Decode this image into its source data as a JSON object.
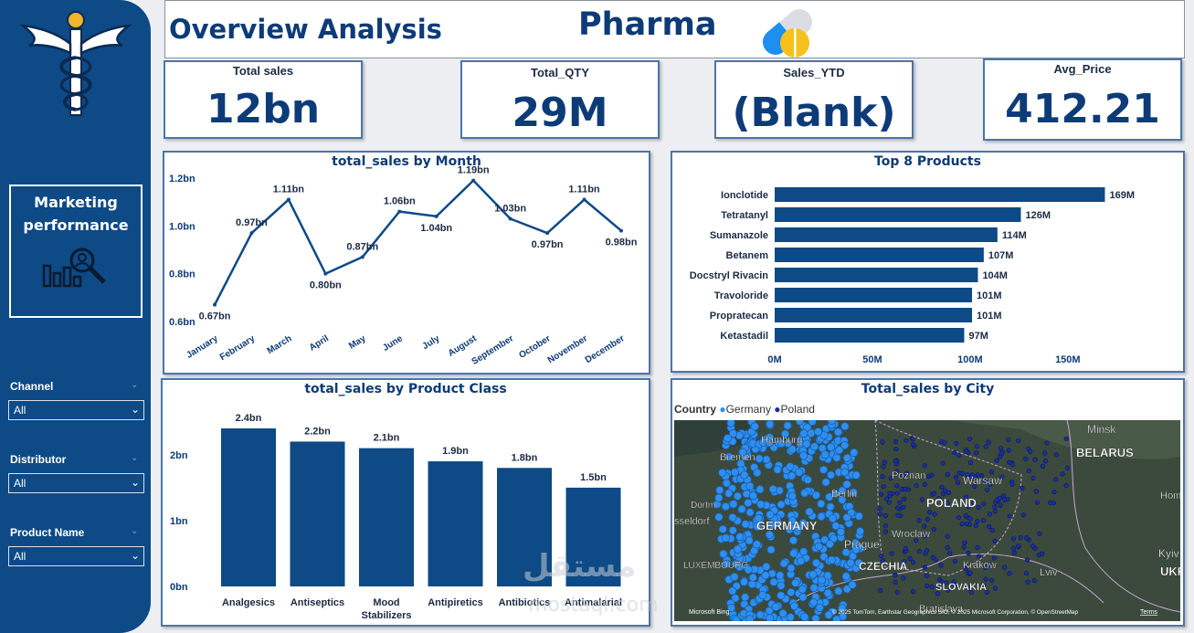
{
  "header": {
    "title": "Overview Analysis",
    "brand": "Pharma"
  },
  "nav": {
    "marketing_label": "Marketing performance"
  },
  "filters": [
    {
      "label": "Channel",
      "value": "All"
    },
    {
      "label": "Distributor",
      "value": "All"
    },
    {
      "label": "Product Name",
      "value": "All"
    }
  ],
  "kpis": [
    {
      "label": "Total sales",
      "value": "12bn"
    },
    {
      "label": "Total_QTY",
      "value": "29M"
    },
    {
      "label": "Sales_YTD",
      "value": "(Blank)"
    },
    {
      "label": "Avg_Price",
      "value": "412.21"
    }
  ],
  "colors": {
    "primary": "#0d4a86",
    "germany": "#2f8ff0",
    "poland": "#1a2fa0"
  },
  "chart_data": [
    {
      "type": "line",
      "title": "total_sales by Month",
      "categories": [
        "January",
        "February",
        "March",
        "April",
        "May",
        "June",
        "July",
        "August",
        "September",
        "October",
        "November",
        "December"
      ],
      "values": [
        0.67,
        0.97,
        1.11,
        0.8,
        0.87,
        1.06,
        1.04,
        1.19,
        1.03,
        0.97,
        1.11,
        0.98
      ],
      "labels": [
        "0.67bn",
        "0.97bn",
        "1.11bn",
        "0.80bn",
        "0.87bn",
        "1.06bn",
        "1.04bn",
        "1.19bn",
        "1.03bn",
        "0.97bn",
        "1.11bn",
        "0.98bn"
      ],
      "yticks": [
        "0.6bn",
        "0.8bn",
        "1.0bn",
        "1.2bn"
      ],
      "ytick_values": [
        0.6,
        0.8,
        1.0,
        1.2
      ],
      "ylim": [
        0.6,
        1.2
      ]
    },
    {
      "type": "bar",
      "orientation": "horizontal",
      "title": "Top 8 Products",
      "categories": [
        "Ionclotide",
        "Tetratanyl",
        "Sumanazole",
        "Betanem",
        "Docstryl Rivacin",
        "Travoloride",
        "Propratecan",
        "Ketastadil"
      ],
      "values": [
        169,
        126,
        114,
        107,
        104,
        101,
        101,
        97
      ],
      "labels": [
        "169M",
        "126M",
        "114M",
        "107M",
        "104M",
        "101M",
        "101M",
        "97M"
      ],
      "xticks": [
        "0M",
        "50M",
        "100M",
        "150M"
      ],
      "xtick_values": [
        0,
        50,
        100,
        150
      ],
      "xlim": [
        0,
        180
      ]
    },
    {
      "type": "bar",
      "title": "total_sales by Product Class",
      "categories": [
        "Analgesics",
        "Antiseptics",
        "Mood Stabilizers",
        "Antipiretics",
        "Antibiotics",
        "Antimalarial"
      ],
      "values": [
        2.4,
        2.2,
        2.1,
        1.9,
        1.8,
        1.5
      ],
      "labels": [
        "2.4bn",
        "2.2bn",
        "2.1bn",
        "1.9bn",
        "1.8bn",
        "1.5bn"
      ],
      "yticks": [
        "0bn",
        "1bn",
        "2bn"
      ],
      "ytick_values": [
        0,
        1,
        2
      ],
      "ylim": [
        0,
        2.65
      ]
    },
    {
      "type": "map",
      "title": "Total_sales by City",
      "legend_title": "Country",
      "legend": [
        "Germany",
        "Poland"
      ],
      "places": [
        "Minsk",
        "BELARUS",
        "Bremen",
        "Hamburg",
        "Poznan",
        "Warsaw",
        "POLAND",
        "Berlin",
        "Dortm",
        "Homel",
        "sseldorf",
        "GERMANY",
        "Wroclaw",
        "Prague",
        "Kyiv",
        "LUXEMBOURG",
        "CZECHIA",
        "Krakow",
        "Lviv",
        "UKRAI",
        "SLOVAKIA",
        "Bratislava",
        "Microsoft Bing",
        "© 2025 TomTom, Earthstar Geographics SIO, © 2025 Microsoft Corporation, © OpenStreetMap",
        "Terms"
      ]
    }
  ],
  "watermark": {
    "text": "مستقل",
    "site": "mostaql.com"
  }
}
